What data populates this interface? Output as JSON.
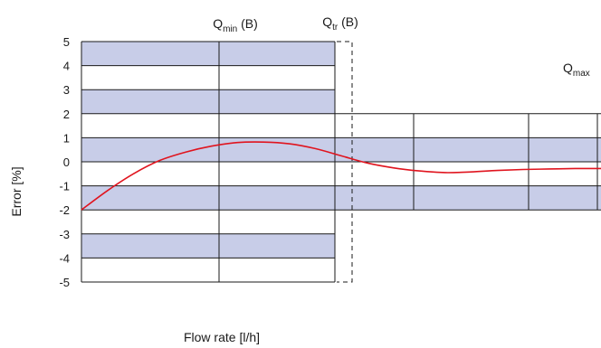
{
  "chart_data": {
    "type": "line",
    "xlabel": "Flow rate [l/h]",
    "ylabel": "Error [%]",
    "ylim": [
      -5,
      5
    ],
    "y_ticks": [
      "5",
      "4",
      "3",
      "2",
      "1",
      "0",
      "-1",
      "-2",
      "-3",
      "-4",
      "-5"
    ],
    "grid": true,
    "markers": [
      {
        "main": "Q",
        "sub": "min",
        "suffix": " (B)"
      },
      {
        "main": "Q",
        "sub": "tr",
        "suffix": " (B)"
      },
      {
        "main": "Q",
        "sub": "max",
        "suffix": ""
      }
    ],
    "tolerance_bands": {
      "low_flow": {
        "error_limit_pct": 5
      },
      "high_flow": {
        "error_limit_pct": 2
      }
    },
    "series": [
      {
        "color": "#e0141e",
        "points": [
          [
            0.0,
            -2.0
          ],
          [
            0.05,
            -1.2
          ],
          [
            0.1,
            -0.5
          ],
          [
            0.15,
            0.05
          ],
          [
            0.2,
            0.4
          ],
          [
            0.25,
            0.65
          ],
          [
            0.3,
            0.8
          ],
          [
            0.35,
            0.82
          ],
          [
            0.4,
            0.75
          ],
          [
            0.45,
            0.55
          ],
          [
            0.5,
            0.25
          ],
          [
            0.55,
            -0.05
          ],
          [
            0.6,
            -0.25
          ],
          [
            0.65,
            -0.38
          ],
          [
            0.7,
            -0.45
          ],
          [
            0.75,
            -0.42
          ],
          [
            0.8,
            -0.36
          ],
          [
            0.85,
            -0.32
          ],
          [
            0.9,
            -0.3
          ],
          [
            0.95,
            -0.28
          ],
          [
            1.0,
            -0.28
          ]
        ]
      }
    ]
  },
  "colors": {
    "band_fill": "#c8cde8",
    "grid_line": "#1a1a1a",
    "curve": "#e0141e"
  }
}
